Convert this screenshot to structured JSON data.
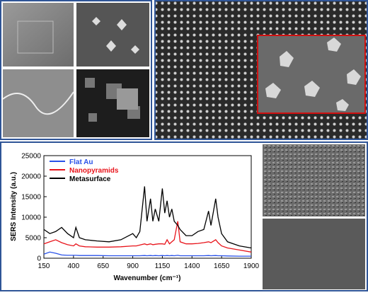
{
  "chart_data": {
    "type": "line",
    "x_label": "Wavenumber (cm⁻¹)",
    "y_label": "SERS Intensity (a.u.)",
    "xlim": [
      150,
      1900
    ],
    "xticks": [
      150,
      400,
      650,
      900,
      1150,
      1400,
      1650,
      1900
    ],
    "ylim": [
      0,
      25000
    ],
    "yticks": [
      0,
      5000,
      10000,
      15000,
      20000,
      25000
    ],
    "legend": "upper left",
    "x": [
      150,
      200,
      250,
      300,
      350,
      400,
      420,
      450,
      500,
      600,
      700,
      800,
      900,
      930,
      960,
      1000,
      1020,
      1050,
      1070,
      1090,
      1120,
      1150,
      1170,
      1190,
      1210,
      1230,
      1250,
      1280,
      1300,
      1350,
      1400,
      1450,
      1500,
      1540,
      1560,
      1600,
      1620,
      1650,
      1700,
      1800,
      1900
    ],
    "series": [
      {
        "name": "Flat Au",
        "color": "#2a52e8",
        "values": [
          1000,
          1500,
          1200,
          800,
          700,
          700,
          700,
          650,
          650,
          650,
          600,
          600,
          600,
          600,
          600,
          650,
          600,
          650,
          600,
          650,
          600,
          650,
          600,
          650,
          600,
          650,
          600,
          700,
          600,
          600,
          600,
          600,
          600,
          650,
          600,
          650,
          600,
          600,
          550,
          500,
          500
        ]
      },
      {
        "name": "Nanopyramids",
        "color": "#e8141b",
        "values": [
          3500,
          4000,
          4500,
          3800,
          3300,
          3000,
          3500,
          3000,
          2800,
          2700,
          2700,
          2800,
          3000,
          3000,
          3200,
          3500,
          3300,
          3500,
          3300,
          3400,
          3500,
          3500,
          3400,
          4500,
          3500,
          4000,
          4500,
          9000,
          4000,
          3500,
          3500,
          3600,
          3800,
          4000,
          3800,
          4500,
          3800,
          3000,
          2500,
          2000,
          1500
        ]
      },
      {
        "name": "Metasurface",
        "color": "#000000",
        "values": [
          7000,
          6000,
          6500,
          7500,
          6000,
          5000,
          7500,
          5000,
          4500,
          4200,
          4000,
          4500,
          6000,
          5000,
          6500,
          17500,
          9000,
          14500,
          9000,
          12000,
          9000,
          17000,
          11000,
          14000,
          10000,
          12000,
          9000,
          8000,
          7000,
          5500,
          5500,
          6500,
          7000,
          11500,
          8000,
          14500,
          10000,
          6000,
          4000,
          3000,
          2500
        ]
      }
    ]
  }
}
